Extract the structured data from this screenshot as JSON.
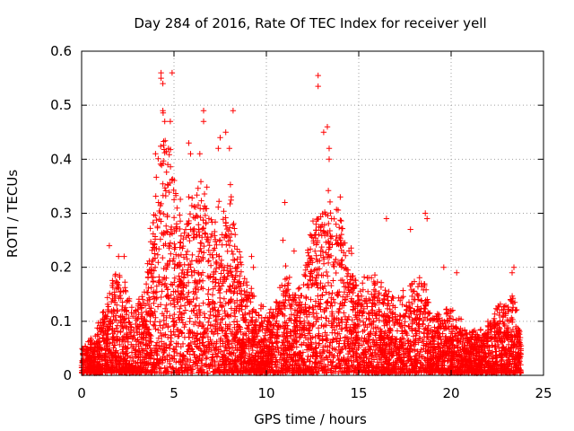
{
  "chart_data": {
    "type": "scatter",
    "title": "Day 284 of 2016, Rate Of TEC Index for receiver yell",
    "xlabel": "GPS time / hours",
    "ylabel": "ROTI / TECUs",
    "xlim": [
      0,
      25
    ],
    "ylim": [
      0,
      0.6
    ],
    "xticks": [
      0,
      5,
      10,
      15,
      20,
      25
    ],
    "xtick_labels": [
      "0",
      "5",
      "10",
      "15",
      "20",
      "25"
    ],
    "yticks": [
      0,
      0.1,
      0.2,
      0.3,
      0.4,
      0.5,
      0.6
    ],
    "ytick_labels": [
      "0",
      "0.1",
      "0.2",
      "0.3",
      "0.4",
      "0.5",
      "0.6"
    ],
    "grid": true,
    "marker": "+",
    "color": "#ff0000",
    "envelope": [
      [
        0.0,
        0.04
      ],
      [
        0.5,
        0.06
      ],
      [
        1.0,
        0.09
      ],
      [
        1.5,
        0.15
      ],
      [
        2.0,
        0.2
      ],
      [
        2.5,
        0.13
      ],
      [
        3.0,
        0.12
      ],
      [
        3.5,
        0.18
      ],
      [
        4.0,
        0.33
      ],
      [
        4.3,
        0.48
      ],
      [
        4.6,
        0.4
      ],
      [
        5.0,
        0.36
      ],
      [
        5.5,
        0.3
      ],
      [
        6.0,
        0.33
      ],
      [
        6.5,
        0.38
      ],
      [
        7.0,
        0.25
      ],
      [
        7.5,
        0.3
      ],
      [
        8.0,
        0.33
      ],
      [
        8.5,
        0.22
      ],
      [
        9.0,
        0.16
      ],
      [
        9.5,
        0.12
      ],
      [
        10.0,
        0.11
      ],
      [
        10.5,
        0.14
      ],
      [
        11.0,
        0.19
      ],
      [
        11.5,
        0.15
      ],
      [
        12.0,
        0.17
      ],
      [
        12.5,
        0.28
      ],
      [
        13.0,
        0.32
      ],
      [
        13.5,
        0.3
      ],
      [
        14.0,
        0.27
      ],
      [
        14.5,
        0.22
      ],
      [
        15.0,
        0.17
      ],
      [
        15.5,
        0.16
      ],
      [
        16.0,
        0.17
      ],
      [
        16.5,
        0.15
      ],
      [
        17.0,
        0.13
      ],
      [
        17.5,
        0.14
      ],
      [
        18.0,
        0.16
      ],
      [
        18.5,
        0.17
      ],
      [
        19.0,
        0.1
      ],
      [
        19.5,
        0.12
      ],
      [
        20.0,
        0.11
      ],
      [
        20.5,
        0.09
      ],
      [
        21.0,
        0.08
      ],
      [
        21.5,
        0.07
      ],
      [
        22.0,
        0.09
      ],
      [
        22.5,
        0.12
      ],
      [
        23.0,
        0.15
      ],
      [
        23.5,
        0.12
      ],
      [
        23.8,
        0.06
      ]
    ],
    "outliers": [
      [
        4.3,
        0.56
      ],
      [
        4.3,
        0.55
      ],
      [
        4.4,
        0.54
      ],
      [
        4.9,
        0.56
      ],
      [
        4.4,
        0.49
      ],
      [
        4.5,
        0.47
      ],
      [
        4.8,
        0.47
      ],
      [
        6.6,
        0.49
      ],
      [
        6.6,
        0.47
      ],
      [
        8.2,
        0.49
      ],
      [
        12.8,
        0.555
      ],
      [
        12.8,
        0.535
      ],
      [
        13.3,
        0.46
      ],
      [
        13.1,
        0.45
      ],
      [
        7.8,
        0.45
      ],
      [
        7.5,
        0.44
      ],
      [
        8.0,
        0.42
      ],
      [
        7.4,
        0.42
      ],
      [
        5.8,
        0.43
      ],
      [
        6.4,
        0.41
      ],
      [
        5.9,
        0.41
      ],
      [
        4.0,
        0.41
      ],
      [
        4.7,
        0.42
      ],
      [
        11.0,
        0.32
      ],
      [
        16.5,
        0.29
      ],
      [
        18.6,
        0.3
      ],
      [
        18.7,
        0.29
      ],
      [
        17.8,
        0.27
      ],
      [
        19.6,
        0.2
      ],
      [
        20.3,
        0.19
      ],
      [
        23.4,
        0.2
      ],
      [
        23.3,
        0.19
      ],
      [
        13.4,
        0.42
      ],
      [
        13.4,
        0.4
      ],
      [
        14.0,
        0.33
      ],
      [
        10.9,
        0.25
      ],
      [
        11.5,
        0.23
      ],
      [
        9.2,
        0.22
      ],
      [
        9.3,
        0.2
      ],
      [
        2.3,
        0.22
      ],
      [
        1.5,
        0.24
      ],
      [
        2.0,
        0.22
      ]
    ],
    "point_count": 5500
  }
}
